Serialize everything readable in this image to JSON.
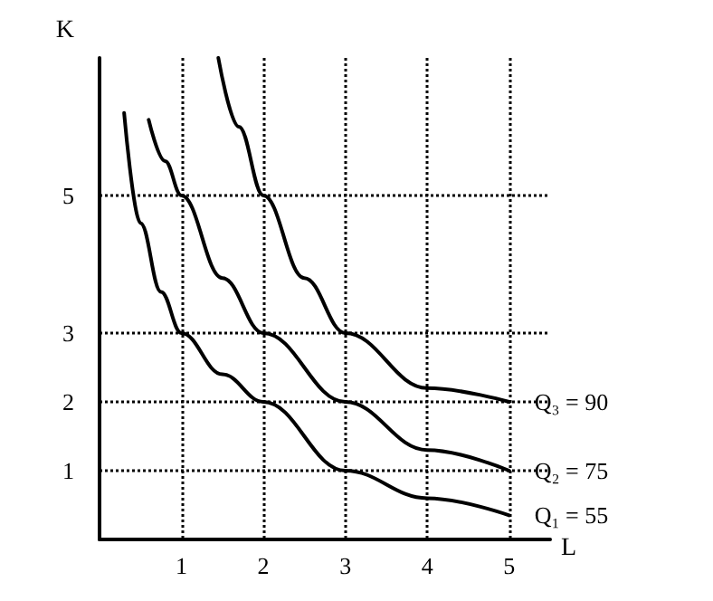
{
  "chart_data": {
    "type": "line",
    "xlabel": "L",
    "ylabel": "K",
    "xlim": [
      0,
      5.5
    ],
    "ylim": [
      0,
      7
    ],
    "xticks": [
      1,
      2,
      3,
      4,
      5
    ],
    "yticks": [
      1,
      2,
      3,
      5
    ],
    "grid": true,
    "marker": "none",
    "line_style": "solid",
    "series": [
      {
        "name": "Q₁ = 55",
        "color": "#000000",
        "x": [
          0.3,
          0.5,
          0.75,
          1,
          1.5,
          2,
          3,
          4,
          5
        ],
        "values": [
          6.2,
          4.6,
          3.6,
          3,
          2.4,
          2,
          1,
          0.6,
          0.35
        ]
      },
      {
        "name": "Q₂ = 75",
        "color": "#000000",
        "x": [
          0.6,
          0.8,
          1,
          1.5,
          2,
          3,
          4,
          5
        ],
        "values": [
          6.1,
          5.5,
          5,
          3.8,
          3,
          2,
          1.3,
          1
        ]
      },
      {
        "name": "Q₃ = 90",
        "color": "#000000",
        "x": [
          1.45,
          1.7,
          2,
          2.5,
          3,
          4,
          5
        ],
        "values": [
          7,
          6,
          5,
          3.8,
          3,
          2.2,
          2
        ]
      }
    ]
  }
}
